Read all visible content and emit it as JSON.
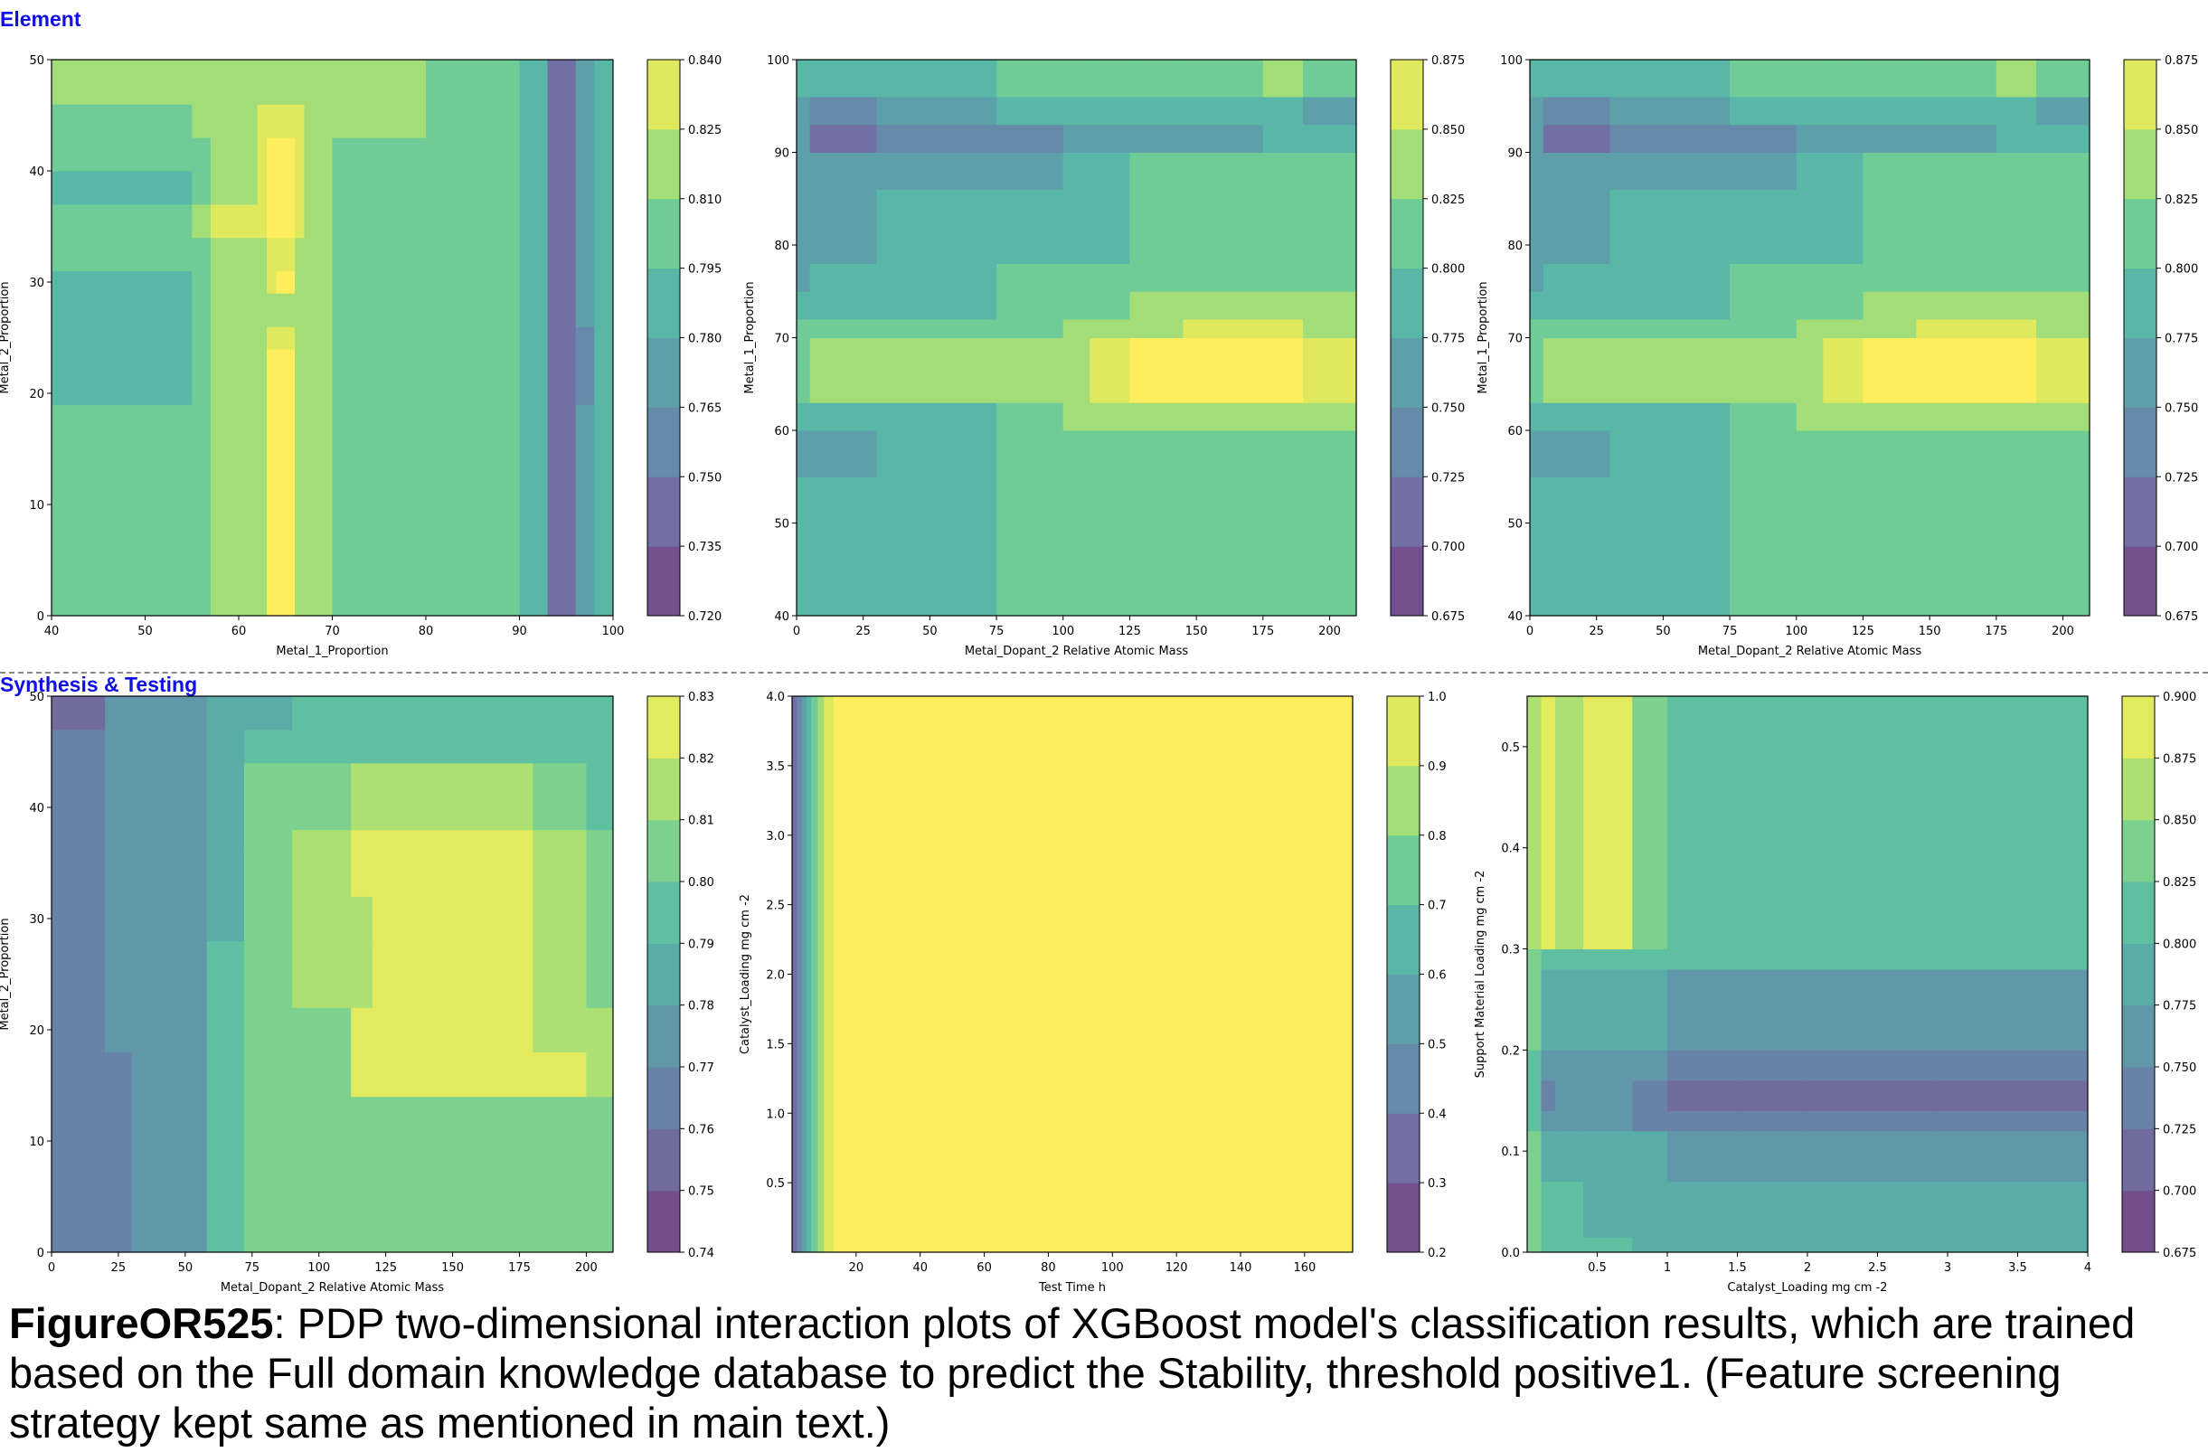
{
  "sections": {
    "element_label": "Element",
    "synthesis_label": "Synthesis & Testing"
  },
  "caption": {
    "figure_id": "FigureOR525",
    "text": ": PDP two-dimensional interaction plots of XGBoost model's classification results, which are trained based on the Full domain knowledge database to predict the Stability, threshold positive1. (Feature screening strategy kept same as mentioned in main text.)"
  },
  "colors": {
    "viridis_low": "#7a4a8c",
    "viridis_high": "#e2e84d",
    "section_label": "#1010e0"
  },
  "chart_data": [
    {
      "type": "heatmap",
      "id": "p1",
      "xlabel": "Metal_1_Proportion",
      "ylabel": "Metal_2_Proportion",
      "xlim": [
        40,
        100
      ],
      "ylim": [
        0,
        50
      ],
      "xticks": [
        40,
        50,
        60,
        70,
        80,
        90,
        100
      ],
      "yticks": [
        0,
        10,
        20,
        30,
        40,
        50
      ],
      "cbar_ticks": [
        "0.720",
        "0.735",
        "0.750",
        "0.765",
        "0.780",
        "0.795",
        "0.810",
        "0.825",
        "0.840"
      ],
      "x_edges": [
        40,
        55,
        57,
        62,
        63,
        64,
        66,
        67,
        70,
        80,
        90,
        92,
        93,
        96,
        98,
        100
      ],
      "y_edges": [
        0,
        14,
        19,
        24,
        26,
        29,
        31,
        34,
        37,
        40,
        43,
        46,
        50
      ],
      "levels_rows_bottom_to_top": [
        [
          5,
          5,
          6,
          6,
          8,
          8,
          6,
          6,
          5,
          5,
          4,
          4,
          1,
          3,
          4
        ],
        [
          5,
          5,
          6,
          6,
          8,
          8,
          6,
          6,
          5,
          5,
          4,
          4,
          1,
          3,
          4
        ],
        [
          4,
          5,
          6,
          6,
          8,
          8,
          6,
          6,
          5,
          5,
          4,
          4,
          1,
          2,
          4
        ],
        [
          4,
          5,
          6,
          6,
          7,
          7,
          6,
          6,
          5,
          5,
          4,
          4,
          1,
          2,
          4
        ],
        [
          4,
          5,
          6,
          6,
          6,
          6,
          6,
          6,
          5,
          5,
          4,
          4,
          1,
          3,
          4
        ],
        [
          4,
          5,
          6,
          6,
          7,
          8,
          6,
          6,
          5,
          5,
          4,
          4,
          1,
          3,
          4
        ],
        [
          5,
          5,
          6,
          6,
          7,
          7,
          6,
          6,
          5,
          5,
          4,
          4,
          1,
          3,
          4
        ],
        [
          5,
          6,
          7,
          7,
          8,
          8,
          7,
          6,
          5,
          5,
          4,
          4,
          1,
          3,
          4
        ],
        [
          4,
          5,
          6,
          7,
          8,
          8,
          7,
          6,
          5,
          5,
          4,
          4,
          1,
          3,
          4
        ],
        [
          5,
          5,
          6,
          7,
          8,
          8,
          7,
          6,
          5,
          5,
          4,
          4,
          1,
          3,
          4
        ],
        [
          5,
          6,
          6,
          7,
          7,
          7,
          7,
          6,
          6,
          5,
          4,
          4,
          1,
          3,
          4
        ],
        [
          6,
          6,
          6,
          6,
          6,
          6,
          6,
          6,
          6,
          5,
          4,
          4,
          1,
          3,
          4
        ]
      ]
    },
    {
      "type": "heatmap",
      "id": "p2",
      "xlabel": "Metal_Dopant_2 Relative Atomic Mass",
      "ylabel": "Metal_1_Proportion",
      "xlim": [
        0,
        210
      ],
      "ylim": [
        40,
        100
      ],
      "xticks": [
        0,
        25,
        50,
        75,
        100,
        125,
        150,
        175,
        200
      ],
      "yticks": [
        40,
        50,
        60,
        70,
        80,
        90,
        100
      ],
      "cbar_ticks": [
        "0.675",
        "0.700",
        "0.725",
        "0.750",
        "0.775",
        "0.800",
        "0.825",
        "0.850",
        "0.875"
      ],
      "x_edges": [
        0,
        5,
        22,
        30,
        75,
        100,
        110,
        125,
        145,
        175,
        190,
        195,
        210
      ],
      "y_edges": [
        40,
        55,
        60,
        63,
        67,
        70,
        72,
        75,
        78,
        86,
        90,
        93,
        96,
        100
      ],
      "levels_rows_bottom_to_top": [
        [
          4,
          4,
          4,
          4,
          5,
          5,
          5,
          5,
          5,
          5,
          5,
          5
        ],
        [
          3,
          3,
          3,
          4,
          5,
          5,
          5,
          5,
          5,
          5,
          5,
          5
        ],
        [
          4,
          4,
          4,
          4,
          5,
          6,
          6,
          6,
          6,
          6,
          6,
          6
        ],
        [
          5,
          6,
          6,
          6,
          6,
          6,
          7,
          8,
          8,
          8,
          7,
          7
        ],
        [
          5,
          6,
          6,
          6,
          6,
          6,
          7,
          8,
          8,
          8,
          7,
          7
        ],
        [
          5,
          5,
          5,
          5,
          5,
          6,
          6,
          6,
          7,
          7,
          6,
          6
        ],
        [
          4,
          4,
          4,
          4,
          5,
          5,
          5,
          6,
          6,
          6,
          6,
          6
        ],
        [
          3,
          4,
          4,
          4,
          5,
          5,
          5,
          5,
          5,
          5,
          5,
          5
        ],
        [
          3,
          3,
          3,
          4,
          4,
          4,
          4,
          5,
          5,
          5,
          5,
          5
        ],
        [
          3,
          3,
          3,
          3,
          3,
          4,
          4,
          5,
          5,
          5,
          5,
          5
        ],
        [
          3,
          1,
          1,
          2,
          2,
          3,
          3,
          3,
          3,
          4,
          4,
          4
        ],
        [
          3,
          2,
          2,
          3,
          4,
          4,
          4,
          4,
          4,
          4,
          3,
          3
        ],
        [
          4,
          4,
          4,
          4,
          5,
          5,
          5,
          5,
          5,
          6,
          5,
          5
        ]
      ]
    },
    {
      "type": "heatmap",
      "id": "p3",
      "xlabel": "Metal_Dopant_2 Relative Atomic Mass",
      "ylabel": "Metal_1_Proportion",
      "xlim": [
        0,
        210
      ],
      "ylim": [
        40,
        100
      ],
      "xticks": [
        0,
        25,
        50,
        75,
        100,
        125,
        150,
        175,
        200
      ],
      "yticks": [
        40,
        50,
        60,
        70,
        80,
        90,
        100
      ],
      "cbar_ticks": [
        "0.675",
        "0.700",
        "0.725",
        "0.750",
        "0.775",
        "0.800",
        "0.825",
        "0.850",
        "0.875"
      ],
      "x_edges": [
        0,
        5,
        22,
        30,
        75,
        100,
        110,
        125,
        145,
        175,
        190,
        195,
        210
      ],
      "y_edges": [
        40,
        55,
        60,
        63,
        67,
        70,
        72,
        75,
        78,
        86,
        90,
        93,
        96,
        100
      ],
      "levels_rows_bottom_to_top": [
        [
          4,
          4,
          4,
          4,
          5,
          5,
          5,
          5,
          5,
          5,
          5,
          5
        ],
        [
          3,
          3,
          3,
          4,
          5,
          5,
          5,
          5,
          5,
          5,
          5,
          5
        ],
        [
          4,
          4,
          4,
          4,
          5,
          6,
          6,
          6,
          6,
          6,
          6,
          6
        ],
        [
          5,
          6,
          6,
          6,
          6,
          6,
          7,
          8,
          8,
          8,
          7,
          7
        ],
        [
          5,
          6,
          6,
          6,
          6,
          6,
          7,
          8,
          8,
          8,
          7,
          7
        ],
        [
          5,
          5,
          5,
          5,
          5,
          6,
          6,
          6,
          7,
          7,
          6,
          6
        ],
        [
          4,
          4,
          4,
          4,
          5,
          5,
          5,
          6,
          6,
          6,
          6,
          6
        ],
        [
          3,
          4,
          4,
          4,
          5,
          5,
          5,
          5,
          5,
          5,
          5,
          5
        ],
        [
          3,
          3,
          3,
          4,
          4,
          4,
          4,
          5,
          5,
          5,
          5,
          5
        ],
        [
          3,
          3,
          3,
          3,
          3,
          4,
          4,
          5,
          5,
          5,
          5,
          5
        ],
        [
          3,
          1,
          1,
          2,
          2,
          3,
          3,
          3,
          3,
          4,
          4,
          4
        ],
        [
          3,
          2,
          2,
          3,
          4,
          4,
          4,
          4,
          4,
          4,
          3,
          3
        ],
        [
          4,
          4,
          4,
          4,
          5,
          5,
          5,
          5,
          5,
          6,
          5,
          5
        ]
      ]
    },
    {
      "type": "heatmap",
      "id": "p4",
      "xlabel": "Metal_Dopant_2 Relative Atomic Mass",
      "ylabel": "Metal_2_Proportion",
      "xlim": [
        0,
        210
      ],
      "ylim": [
        0,
        50
      ],
      "xticks": [
        0,
        25,
        50,
        75,
        100,
        125,
        150,
        175,
        200
      ],
      "yticks": [
        0,
        10,
        20,
        30,
        40,
        50
      ],
      "cbar_ticks": [
        "0.74",
        "0.75",
        "0.76",
        "0.77",
        "0.78",
        "0.79",
        "0.80",
        "0.81",
        "0.82",
        "0.83"
      ],
      "x_edges": [
        0,
        20,
        30,
        58,
        72,
        90,
        112,
        120,
        150,
        180,
        200,
        210
      ],
      "y_edges": [
        0,
        14,
        18,
        22,
        28,
        32,
        36,
        38,
        44,
        47,
        50
      ],
      "levels_rows_bottom_to_top": [
        [
          2,
          2,
          3,
          5,
          6,
          6,
          6,
          6,
          6,
          6,
          6
        ],
        [
          2,
          2,
          3,
          5,
          6,
          6,
          8,
          8,
          8,
          8,
          7
        ],
        [
          2,
          3,
          3,
          5,
          6,
          6,
          8,
          8,
          8,
          7,
          7
        ],
        [
          2,
          3,
          3,
          5,
          6,
          7,
          7,
          8,
          8,
          7,
          6
        ],
        [
          2,
          3,
          3,
          4,
          6,
          7,
          7,
          8,
          8,
          7,
          6
        ],
        [
          2,
          3,
          3,
          4,
          6,
          7,
          8,
          8,
          8,
          7,
          6
        ],
        [
          2,
          3,
          3,
          4,
          6,
          7,
          8,
          8,
          8,
          7,
          6
        ],
        [
          2,
          3,
          3,
          4,
          6,
          6,
          7,
          7,
          7,
          6,
          5
        ],
        [
          2,
          3,
          3,
          4,
          5,
          5,
          5,
          5,
          5,
          5,
          5
        ],
        [
          1,
          3,
          3,
          4,
          4,
          5,
          5,
          5,
          5,
          5,
          5
        ]
      ]
    },
    {
      "type": "heatmap",
      "id": "p5",
      "xlabel": "Test Time h",
      "ylabel": "Catalyst_Loading mg cm -2",
      "xlim": [
        0,
        175
      ],
      "ylim": [
        0,
        4
      ],
      "xticks": [
        20,
        40,
        60,
        80,
        100,
        120,
        140,
        160
      ],
      "yticks": [
        0.5,
        1.0,
        1.5,
        2.0,
        2.5,
        3.0,
        3.5,
        4.0
      ],
      "cbar_ticks": [
        "0.2",
        "0.3",
        "0.4",
        "0.5",
        "0.6",
        "0.7",
        "0.8",
        "0.9",
        "1.0"
      ],
      "x_edges": [
        0,
        1.5,
        3,
        4.5,
        6,
        8,
        10,
        13,
        175
      ],
      "y_edges": [
        0,
        4
      ],
      "levels_rows_bottom_to_top": [
        [
          1,
          2,
          3,
          4,
          5,
          6,
          7,
          8
        ]
      ]
    },
    {
      "type": "heatmap",
      "id": "p6",
      "xlabel": "Catalyst_Loading mg cm -2",
      "ylabel": "Support Material Loading mg cm -2",
      "xlim": [
        0,
        4
      ],
      "ylim": [
        0,
        0.55
      ],
      "xticks": [
        0.5,
        1.0,
        1.5,
        2.0,
        2.5,
        3.0,
        3.5,
        4.0
      ],
      "yticks": [
        0.0,
        0.1,
        0.2,
        0.3,
        0.4,
        0.5
      ],
      "cbar_ticks": [
        "0.675",
        "0.700",
        "0.725",
        "0.750",
        "0.775",
        "0.800",
        "0.825",
        "0.850",
        "0.875",
        "0.900"
      ],
      "x_edges": [
        0,
        0.1,
        0.2,
        0.4,
        0.75,
        1.0,
        1.5,
        2.0,
        2.9,
        4.0
      ],
      "y_edges": [
        0,
        0.015,
        0.07,
        0.12,
        0.14,
        0.17,
        0.2,
        0.28,
        0.3,
        0.55
      ],
      "levels_rows_bottom_to_top": [
        [
          6,
          5,
          5,
          5,
          4,
          4,
          4,
          4,
          4
        ],
        [
          6,
          5,
          5,
          4,
          4,
          4,
          4,
          4,
          4
        ],
        [
          6,
          4,
          4,
          4,
          4,
          3,
          3,
          3,
          3
        ],
        [
          5,
          3,
          3,
          3,
          2,
          2,
          2,
          2,
          2
        ],
        [
          5,
          2,
          3,
          3,
          2,
          1,
          1,
          1,
          1
        ],
        [
          5,
          3,
          3,
          3,
          3,
          2,
          2,
          2,
          2
        ],
        [
          6,
          4,
          4,
          4,
          4,
          3,
          3,
          3,
          3
        ],
        [
          6,
          5,
          5,
          5,
          5,
          5,
          5,
          5,
          5
        ],
        [
          7,
          8,
          7,
          8,
          6,
          5,
          5,
          5,
          5
        ]
      ]
    }
  ]
}
